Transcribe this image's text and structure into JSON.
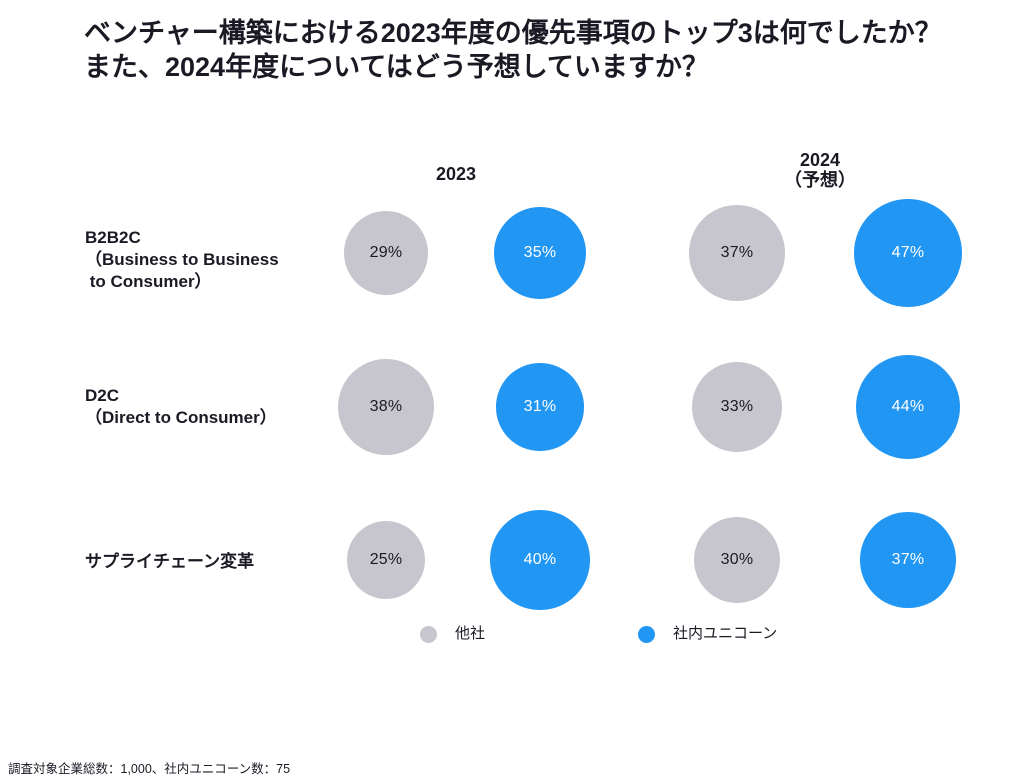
{
  "title": {
    "line1": "ベンチャー構築における2023年度の優先事項のトップ3は何でしたか？",
    "line2": "また、2024年度についてはどう予想していますか？"
  },
  "columns": [
    {
      "label": "2023",
      "sublabel": ""
    },
    {
      "label": "2024",
      "sublabel": "（予想）"
    }
  ],
  "legend": [
    {
      "label": "他社",
      "color": "#C7C6CE",
      "series": "other"
    },
    {
      "label": "社内ユニコーン",
      "color": "#2196F3",
      "series": "unicorn"
    }
  ],
  "footnote": "調査対象企業総数：1,000、社内ユニコーン数：75",
  "colors": {
    "other": "#C7C6CE",
    "unicorn": "#2196F3",
    "text": "#1A1A24",
    "bubble_label_on_blue": "#FFFFFF"
  },
  "chart_data": {
    "type": "scatter",
    "subtype": "bubble-matrix",
    "title": "ベンチャー構築における2023年度の優先事項のトップ3は何でしたか？また、2024年度についてはどう予想していますか？",
    "unit": "%",
    "column_groups": [
      "2023",
      "2024（予想）"
    ],
    "legend_entries": [
      "他社",
      "社内ユニコーン"
    ],
    "note": "調査対象企業総数：1,000、社内ユニコーン数：75",
    "series": [
      {
        "name": "他社",
        "color": "#C7C6CE",
        "values_2023": [
          29,
          38,
          25
        ],
        "values_2024_forecast": [
          37,
          33,
          30
        ]
      },
      {
        "name": "社内ユニコーン",
        "color": "#2196F3",
        "values_2023": [
          35,
          31,
          40
        ],
        "values_2024_forecast": [
          47,
          44,
          37
        ]
      }
    ],
    "rows": [
      {
        "id": "b2b2c",
        "label_lines": [
          "B2B2C",
          "（Business to Business",
          " to Consumer）"
        ],
        "bubbles": [
          {
            "group": "2023",
            "series": "other",
            "value": 29,
            "label": "29%"
          },
          {
            "group": "2023",
            "series": "unicorn",
            "value": 35,
            "label": "35%"
          },
          {
            "group": "2024",
            "series": "other",
            "value": 37,
            "label": "37%"
          },
          {
            "group": "2024",
            "series": "unicorn",
            "value": 47,
            "label": "47%"
          }
        ]
      },
      {
        "id": "d2c",
        "label_lines": [
          "D2C",
          "（Direct to Consumer）"
        ],
        "bubbles": [
          {
            "group": "2023",
            "series": "other",
            "value": 38,
            "label": "38%"
          },
          {
            "group": "2023",
            "series": "unicorn",
            "value": 31,
            "label": "31%"
          },
          {
            "group": "2024",
            "series": "other",
            "value": 33,
            "label": "33%"
          },
          {
            "group": "2024",
            "series": "unicorn",
            "value": 44,
            "label": "44%"
          }
        ]
      },
      {
        "id": "supply-chain",
        "label_lines": [
          "サプライチェーン変革"
        ],
        "bubbles": [
          {
            "group": "2023",
            "series": "other",
            "value": 25,
            "label": "25%"
          },
          {
            "group": "2023",
            "series": "unicorn",
            "value": 40,
            "label": "40%"
          },
          {
            "group": "2024",
            "series": "other",
            "value": 30,
            "label": "30%"
          },
          {
            "group": "2024",
            "series": "unicorn",
            "value": 37,
            "label": "37%"
          }
        ]
      }
    ]
  }
}
